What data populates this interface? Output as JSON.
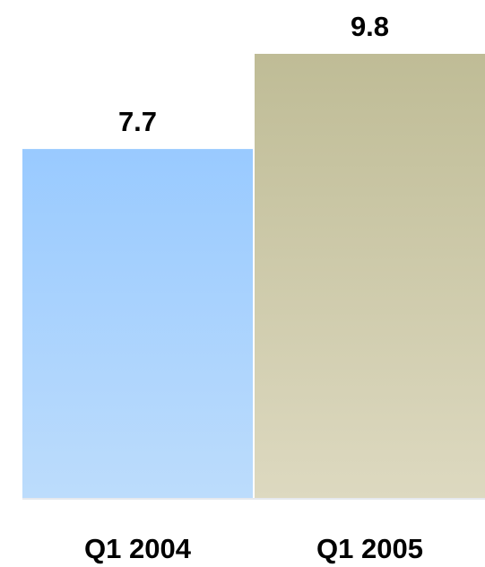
{
  "chart_data": {
    "type": "bar",
    "categories": [
      "Q1 2004",
      "Q1 2005"
    ],
    "values": [
      7.7,
      9.8
    ],
    "data_labels": [
      "7.7",
      "9.8"
    ],
    "title": "",
    "xlabel": "",
    "ylabel": "",
    "ylim": [
      0,
      9.8
    ],
    "grid": false,
    "legend": "none",
    "colors": [
      {
        "top": "#99caff",
        "bottom": "#bcdcfc"
      },
      {
        "top": "#bfbc96",
        "bottom": "#ddd9c0"
      }
    ],
    "baseline_color": "#e6e9ee"
  }
}
